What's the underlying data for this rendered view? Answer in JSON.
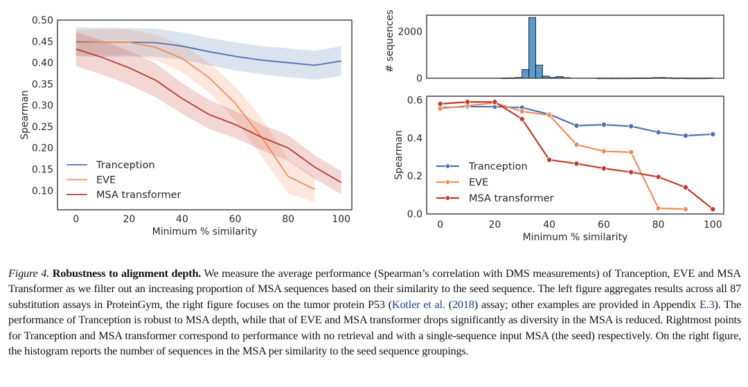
{
  "colors": {
    "tranception": "#4c72b0",
    "eve": "#ee8d5a",
    "msa": "#c0392b",
    "hist": "#5a9bd4"
  },
  "chart_data": [
    {
      "id": "left",
      "type": "line",
      "title": "",
      "xlabel": "Minimum % similarity",
      "ylabel": "Spearman",
      "xlim": [
        -7,
        104
      ],
      "ylim": [
        0.055,
        0.5
      ],
      "xticks": [
        0,
        20,
        40,
        60,
        80,
        100
      ],
      "yticks": [
        0.1,
        0.15,
        0.2,
        0.25,
        0.3,
        0.35,
        0.4,
        0.45,
        0.5
      ],
      "ytick_labels": [
        "0.10",
        "0.15",
        "0.20",
        "0.25",
        "0.30",
        "0.35",
        "0.40",
        "0.45",
        "0.50"
      ],
      "legend": "lower-left",
      "series": [
        {
          "name": "Tranception",
          "color_key": "tranception",
          "x": [
            0,
            10,
            20,
            30,
            40,
            50,
            60,
            70,
            80,
            90,
            100
          ],
          "y": [
            0.449,
            0.448,
            0.448,
            0.447,
            0.439,
            0.426,
            0.415,
            0.406,
            0.4,
            0.394,
            0.404
          ],
          "band": [
            0.034,
            0.034,
            0.033,
            0.033,
            0.032,
            0.032,
            0.033,
            0.033,
            0.034,
            0.034,
            0.035
          ]
        },
        {
          "name": "EVE",
          "color_key": "eve",
          "x": [
            0,
            10,
            20,
            30,
            40,
            50,
            60,
            70,
            80,
            90
          ],
          "y": [
            0.447,
            0.448,
            0.448,
            0.436,
            0.41,
            0.366,
            0.305,
            0.225,
            0.133,
            0.103
          ],
          "band": [
            0.03,
            0.03,
            0.03,
            0.03,
            0.032,
            0.035,
            0.04,
            0.045,
            0.04,
            0.03
          ]
        },
        {
          "name": "MSA transformer",
          "color_key": "msa",
          "x": [
            0,
            10,
            20,
            30,
            40,
            50,
            60,
            70,
            80,
            90,
            100
          ],
          "y": [
            0.432,
            0.412,
            0.388,
            0.359,
            0.316,
            0.279,
            0.255,
            0.225,
            0.2,
            0.155,
            0.119
          ],
          "band": [
            0.04,
            0.04,
            0.04,
            0.04,
            0.036,
            0.034,
            0.032,
            0.03,
            0.03,
            0.028,
            0.027
          ]
        }
      ]
    },
    {
      "id": "histogram",
      "type": "bar",
      "xlabel": "",
      "ylabel": "# sequences",
      "xlim": [
        -5,
        104
      ],
      "ylim": [
        0,
        2700
      ],
      "yticks": [
        0,
        2000
      ],
      "ytick_labels": [
        "0",
        "2000"
      ],
      "bin_width": 2.5,
      "bin_starts": [
        22.5,
        25,
        27.5,
        30,
        32.5,
        35,
        37.5,
        40,
        42.5,
        45,
        57.5,
        60,
        62.5,
        65,
        67.5,
        70,
        72.5,
        75,
        77.5,
        80,
        82.5,
        85,
        87.5,
        90,
        92.5,
        95,
        97.5
      ],
      "values": [
        8,
        15,
        30,
        370,
        2600,
        560,
        90,
        30,
        70,
        25,
        4,
        6,
        4,
        6,
        5,
        8,
        10,
        15,
        25,
        30,
        20,
        6,
        10,
        5,
        5,
        4,
        15
      ]
    },
    {
      "id": "right",
      "type": "line",
      "title": "",
      "xlabel": "Minimum % similarity",
      "ylabel": "Spearman",
      "xlim": [
        -5,
        104
      ],
      "ylim": [
        0,
        0.62
      ],
      "xticks": [
        0,
        20,
        40,
        60,
        80,
        100
      ],
      "yticks": [
        0.0,
        0.2,
        0.4,
        0.6
      ],
      "ytick_labels": [
        "0.0",
        "0.2",
        "0.4",
        "0.6"
      ],
      "legend": "lower-left",
      "markers": true,
      "series": [
        {
          "name": "Tranception",
          "color_key": "tranception",
          "x": [
            0,
            10,
            20,
            30,
            40,
            50,
            60,
            70,
            80,
            90,
            100
          ],
          "y": [
            0.56,
            0.565,
            0.565,
            0.56,
            0.525,
            0.465,
            0.47,
            0.462,
            0.43,
            0.412,
            0.42
          ]
        },
        {
          "name": "EVE",
          "color_key": "eve",
          "x": [
            0,
            10,
            20,
            30,
            40,
            50,
            60,
            70,
            80,
            90
          ],
          "y": [
            0.555,
            0.57,
            0.585,
            0.54,
            0.52,
            0.365,
            0.33,
            0.325,
            0.03,
            0.025
          ]
        },
        {
          "name": "MSA transformer",
          "color_key": "msa",
          "x": [
            0,
            10,
            20,
            30,
            40,
            50,
            60,
            70,
            80,
            90,
            100
          ],
          "y": [
            0.58,
            0.59,
            0.59,
            0.5,
            0.285,
            0.265,
            0.24,
            0.22,
            0.195,
            0.14,
            0.025
          ]
        }
      ]
    }
  ],
  "caption": {
    "figure_label": "Figure 4.",
    "title": "Robustness to alignment depth.",
    "text_1": " We measure the average performance (Spearman’s correlation with DMS measurements) of Tranception, EVE and MSA Transformer as we filter out an increasing proportion of MSA sequences based on their similarity to the seed sequence. The left figure aggregates results across all 87 substitution assays in ProteinGym, the right figure focuses on the tumor protein P53 (",
    "citation_author": "Kotler et al.",
    "text_2": " (",
    "citation_year": "2018",
    "text_3": ") assay; other examples are provided in Appendix ",
    "appendix_ref": "E.3",
    "text_4": "). The performance of Tranception is robust to MSA depth, while that of EVE and MSA transformer drops significantly as diversity in the MSA is reduced. Rightmost points for Tranception and MSA transformer correspond to performance with no retrieval and with a single-sequence input MSA (the seed) respectively. On the right figure, the histogram reports the number of sequences in the MSA per similarity to the seed sequence groupings."
  }
}
